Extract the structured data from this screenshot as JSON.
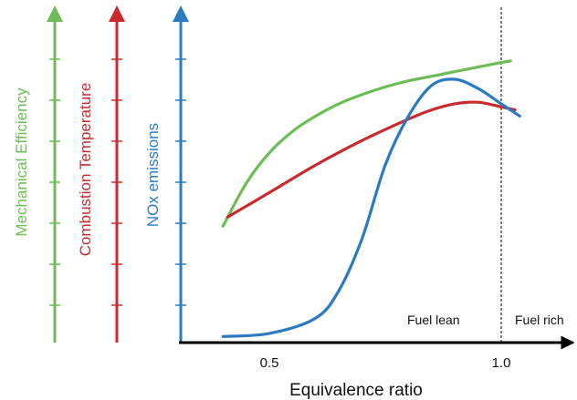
{
  "chart_data": {
    "type": "line",
    "xlabel": "Equivalence ratio",
    "x_ticks": [
      "0.5",
      "1.0"
    ],
    "x_tick_values": [
      0.5,
      1.0
    ],
    "xlim": [
      0.3,
      1.15
    ],
    "ylim": [
      0,
      100
    ],
    "grid": false,
    "legend": "none",
    "reference_line": {
      "x": 1.0,
      "style": "dotted"
    },
    "annotations": [
      "Fuel lean",
      "Fuel rich"
    ],
    "axes": [
      {
        "label": "Mechanical Efficiency",
        "color": "#6cbd56"
      },
      {
        "label": "Combustion Temperature",
        "color": "#c92a2e"
      },
      {
        "label": "NOx emissions",
        "color": "#2a7bc1"
      }
    ],
    "series": [
      {
        "color": "#6cbd56",
        "x": [
          0.4,
          0.45,
          0.5,
          0.55,
          0.6,
          0.65,
          0.7,
          0.75,
          0.8,
          0.85,
          0.9,
          0.95,
          1.0,
          1.02
        ],
        "y": [
          38,
          52,
          62,
          69,
          74,
          78,
          81,
          83.5,
          85.5,
          87,
          88.5,
          90,
          91.5,
          92
        ]
      },
      {
        "color": "#c92a2e",
        "x": [
          0.41,
          0.5,
          0.6,
          0.7,
          0.8,
          0.85,
          0.9,
          0.95,
          1.0,
          1.03
        ],
        "y": [
          41,
          49,
          58,
          66,
          73,
          76,
          78,
          78.5,
          77,
          76
        ]
      },
      {
        "color": "#2a7bc1",
        "x": [
          0.4,
          0.5,
          0.6,
          0.65,
          0.7,
          0.75,
          0.8,
          0.85,
          0.9,
          0.95,
          1.0,
          1.04
        ],
        "y": [
          2,
          3,
          8,
          17,
          34,
          58,
          74,
          84,
          86,
          83,
          78,
          74
        ]
      }
    ]
  }
}
